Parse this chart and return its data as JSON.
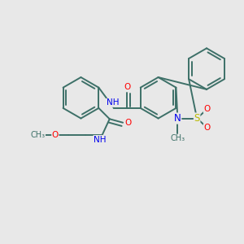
{
  "background_color": "#e8e8e8",
  "bond_color": "#3d7068",
  "atom_colors": {
    "O": "#ff0000",
    "N": "#0000ee",
    "S": "#bbbb00",
    "C": "#3d7068"
  },
  "figsize": [
    3.0,
    3.0
  ],
  "dpi": 100,
  "xlim": [
    0,
    10
  ],
  "ylim": [
    0,
    10
  ]
}
